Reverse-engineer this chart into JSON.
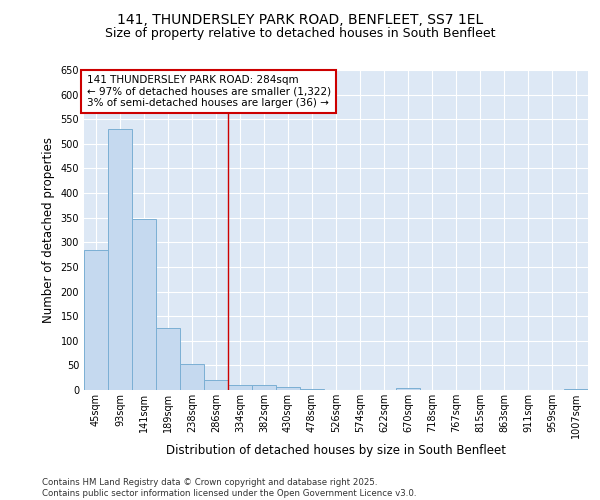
{
  "title_line1": "141, THUNDERSLEY PARK ROAD, BENFLEET, SS7 1EL",
  "title_line2": "Size of property relative to detached houses in South Benfleet",
  "xlabel": "Distribution of detached houses by size in South Benfleet",
  "ylabel": "Number of detached properties",
  "categories": [
    "45sqm",
    "93sqm",
    "141sqm",
    "189sqm",
    "238sqm",
    "286sqm",
    "334sqm",
    "382sqm",
    "430sqm",
    "478sqm",
    "526sqm",
    "574sqm",
    "622sqm",
    "670sqm",
    "718sqm",
    "767sqm",
    "815sqm",
    "863sqm",
    "911sqm",
    "959sqm",
    "1007sqm"
  ],
  "values": [
    285,
    530,
    348,
    125,
    52,
    20,
    10,
    10,
    7,
    3,
    1,
    0,
    0,
    5,
    0,
    0,
    0,
    0,
    0,
    0,
    3
  ],
  "bar_color": "#c5d9ef",
  "bar_edge_color": "#7bafd4",
  "red_line_x": 5.5,
  "annotation_text": "141 THUNDERSLEY PARK ROAD: 284sqm\n← 97% of detached houses are smaller (1,322)\n3% of semi-detached houses are larger (36) →",
  "annotation_box_color": "#ffffff",
  "annotation_box_edge_color": "#cc0000",
  "ylim": [
    0,
    650
  ],
  "yticks": [
    0,
    50,
    100,
    150,
    200,
    250,
    300,
    350,
    400,
    450,
    500,
    550,
    600,
    650
  ],
  "background_color": "#dde8f5",
  "grid_color": "#ffffff",
  "footer_text": "Contains HM Land Registry data © Crown copyright and database right 2025.\nContains public sector information licensed under the Open Government Licence v3.0.",
  "title_fontsize": 10,
  "subtitle_fontsize": 9,
  "tick_fontsize": 7,
  "label_fontsize": 8.5,
  "annotation_fontsize": 7.5
}
